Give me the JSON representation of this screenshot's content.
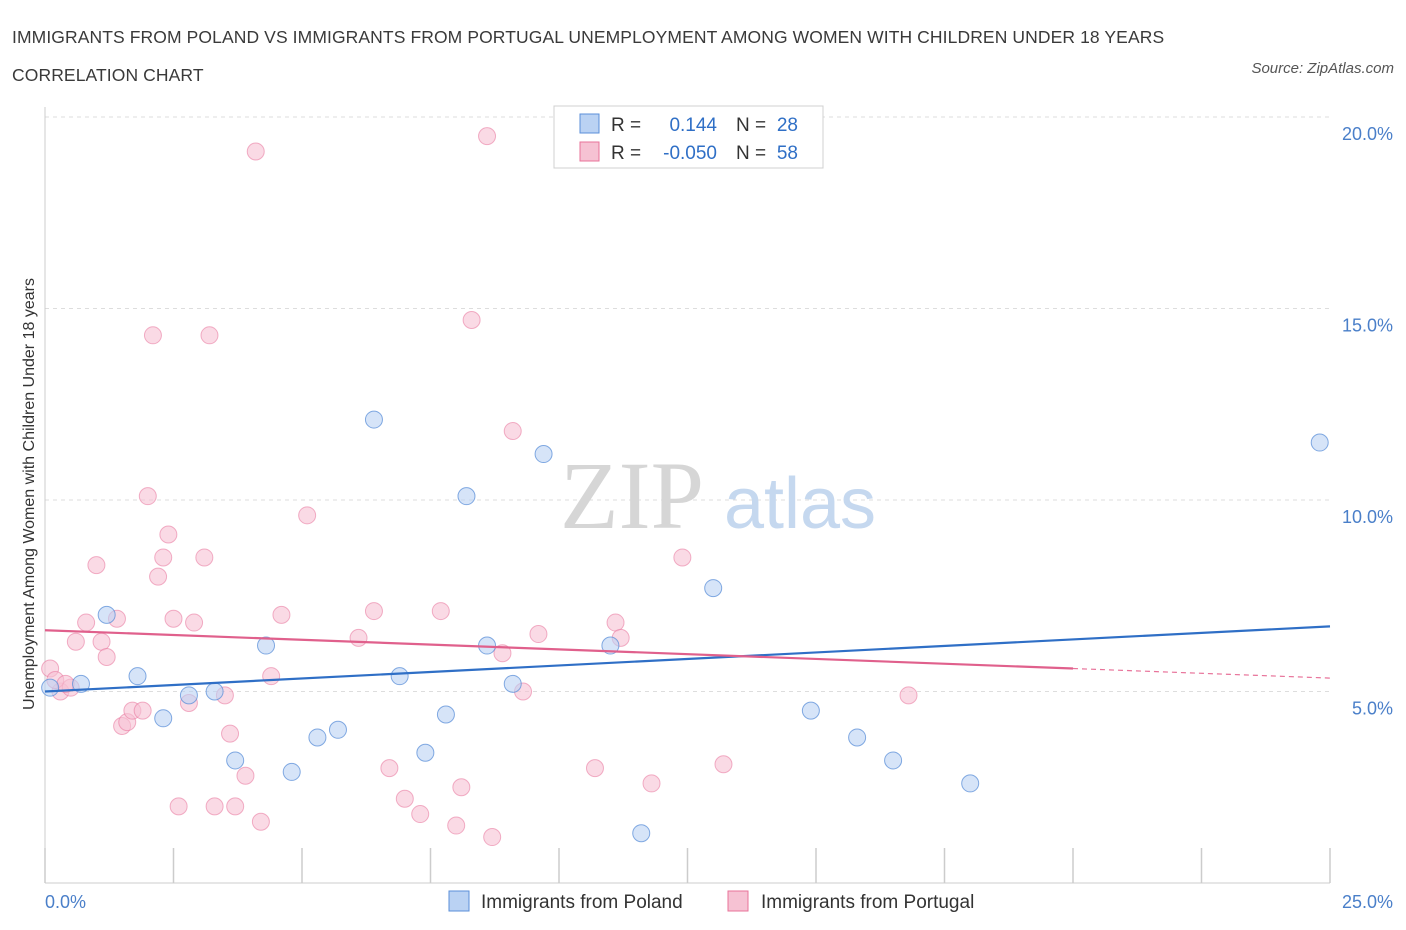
{
  "title": "IMMIGRANTS FROM POLAND VS IMMIGRANTS FROM PORTUGAL UNEMPLOYMENT AMONG WOMEN WITH CHILDREN UNDER 18 YEARS CORRELATION CHART",
  "source": "Source: ZipAtlas.com",
  "watermark": {
    "zip": "ZIP",
    "atlas": "atlas"
  },
  "colors": {
    "poland": "#5b8fd8",
    "poland_fill": "#bad2f3",
    "portugal": "#e8739a",
    "portugal_fill": "#f6c2d3",
    "tick_label": "#4a7fc9",
    "grid": "#dddddd"
  },
  "legend": {
    "poland": {
      "r_label": "R =",
      "r_value": "0.144",
      "n_label": "N =",
      "n_value": "28"
    },
    "portugal": {
      "r_label": "R =",
      "r_value": "-0.050",
      "n_label": "N =",
      "n_value": "58"
    }
  },
  "bottom_legend": [
    "Immigrants from Poland",
    "Immigrants from Portugal"
  ],
  "chart_data": {
    "type": "scatter",
    "ylabel": "Unemployment Among Women with Children Under 18 years",
    "xlim": [
      0,
      25
    ],
    "ylim": [
      0,
      20
    ],
    "x_tick_labels": [
      "0.0%",
      "25.0%"
    ],
    "y_ticks": [
      5,
      10,
      15,
      20
    ],
    "y_tick_labels": [
      "5.0%",
      "10.0%",
      "15.0%",
      "20.0%"
    ],
    "grid": "horizontal dashed",
    "legend_position": "top-center",
    "series": [
      {
        "name": "Immigrants from Poland",
        "points": [
          [
            0.1,
            5.1
          ],
          [
            0.7,
            5.2
          ],
          [
            1.2,
            7.0
          ],
          [
            1.8,
            5.4
          ],
          [
            2.3,
            4.3
          ],
          [
            2.8,
            4.9
          ],
          [
            3.3,
            5.0
          ],
          [
            3.7,
            3.2
          ],
          [
            4.3,
            6.2
          ],
          [
            4.8,
            2.9
          ],
          [
            5.3,
            3.8
          ],
          [
            5.7,
            4.0
          ],
          [
            6.4,
            12.1
          ],
          [
            6.9,
            5.4
          ],
          [
            7.4,
            3.4
          ],
          [
            7.8,
            4.4
          ],
          [
            8.2,
            10.1
          ],
          [
            8.6,
            6.2
          ],
          [
            9.1,
            5.2
          ],
          [
            9.7,
            11.2
          ],
          [
            11.0,
            6.2
          ],
          [
            11.6,
            1.3
          ],
          [
            13.0,
            7.7
          ],
          [
            14.9,
            4.5
          ],
          [
            15.8,
            3.8
          ],
          [
            16.5,
            3.2
          ],
          [
            18.0,
            2.6
          ],
          [
            24.8,
            11.5
          ]
        ],
        "trend": {
          "x": [
            0,
            25
          ],
          "y": [
            5.0,
            6.7
          ]
        }
      },
      {
        "name": "Immigrants from Portugal",
        "points": [
          [
            0.1,
            5.6
          ],
          [
            0.3,
            5.0
          ],
          [
            0.5,
            5.1
          ],
          [
            0.6,
            6.3
          ],
          [
            0.8,
            6.8
          ],
          [
            1.0,
            8.3
          ],
          [
            1.1,
            6.3
          ],
          [
            1.2,
            5.9
          ],
          [
            1.4,
            6.9
          ],
          [
            1.5,
            4.1
          ],
          [
            1.6,
            4.2
          ],
          [
            1.7,
            4.5
          ],
          [
            1.9,
            4.5
          ],
          [
            2.0,
            10.1
          ],
          [
            2.1,
            14.3
          ],
          [
            2.2,
            8.0
          ],
          [
            2.3,
            8.5
          ],
          [
            2.4,
            9.1
          ],
          [
            2.5,
            6.9
          ],
          [
            2.6,
            2.0
          ],
          [
            2.8,
            4.7
          ],
          [
            2.9,
            6.8
          ],
          [
            3.1,
            8.5
          ],
          [
            3.2,
            14.3
          ],
          [
            3.3,
            2.0
          ],
          [
            3.5,
            4.9
          ],
          [
            3.6,
            3.9
          ],
          [
            3.7,
            2.0
          ],
          [
            3.9,
            2.8
          ],
          [
            4.1,
            19.1
          ],
          [
            4.2,
            1.6
          ],
          [
            4.4,
            5.4
          ],
          [
            4.6,
            7.0
          ],
          [
            5.1,
            9.6
          ],
          [
            6.1,
            6.4
          ],
          [
            6.4,
            7.1
          ],
          [
            6.7,
            3.0
          ],
          [
            7.0,
            2.2
          ],
          [
            7.3,
            1.8
          ],
          [
            7.7,
            7.1
          ],
          [
            8.0,
            1.5
          ],
          [
            8.1,
            2.5
          ],
          [
            8.3,
            14.7
          ],
          [
            8.6,
            19.5
          ],
          [
            8.7,
            1.2
          ],
          [
            8.9,
            6.0
          ],
          [
            9.1,
            11.8
          ],
          [
            9.3,
            5.0
          ],
          [
            9.6,
            6.5
          ],
          [
            10.7,
            3.0
          ],
          [
            11.1,
            6.8
          ],
          [
            11.2,
            6.4
          ],
          [
            11.8,
            2.6
          ],
          [
            12.4,
            8.5
          ],
          [
            13.2,
            3.1
          ],
          [
            16.8,
            4.9
          ],
          [
            0.2,
            5.3
          ],
          [
            0.4,
            5.2
          ]
        ],
        "trend": {
          "x": [
            0,
            20
          ],
          "y": [
            6.6,
            5.6
          ]
        }
      }
    ]
  }
}
